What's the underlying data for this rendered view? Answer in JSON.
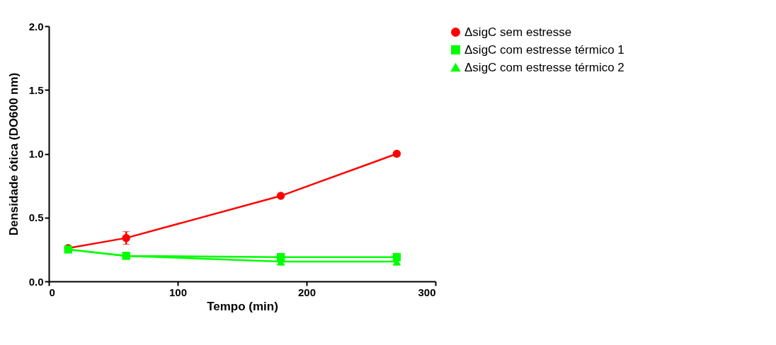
{
  "chart_data": {
    "type": "line",
    "xlabel": "Tempo (min)",
    "ylabel": "Densidade ótica (DO600 nm)",
    "x": [
      15,
      60,
      180,
      270
    ],
    "series": [
      {
        "name": "ΔsigC sem estresse",
        "color": "#ff0000",
        "marker": "circle",
        "values": [
          0.26,
          0.34,
          0.67,
          1.0
        ],
        "errors": [
          null,
          0.05,
          null,
          null
        ]
      },
      {
        "name": "ΔsigC com estresse térmico 1",
        "color": "#00ff00",
        "marker": "square",
        "values": [
          0.25,
          0.2,
          0.19,
          0.19
        ],
        "errors": [
          null,
          null,
          0.03,
          0.03
        ]
      },
      {
        "name": "ΔsigC com estresse térmico 2",
        "color": "#00ff00",
        "marker": "triangle",
        "values": [
          0.25,
          0.2,
          0.155,
          0.155
        ],
        "errors": [
          null,
          null,
          0.03,
          0.03
        ]
      }
    ],
    "xlim": [
      0,
      300
    ],
    "xticks": [
      0,
      100,
      200,
      300
    ],
    "ylim": [
      0,
      2
    ],
    "yticks": [
      {
        "value": 0,
        "label": "0.0"
      },
      {
        "value": 0.5,
        "label": "0.5"
      },
      {
        "value": 1,
        "label": "1.0"
      },
      {
        "value": 1.5,
        "label": "1.5"
      },
      {
        "value": 2,
        "label": "2.0"
      }
    ],
    "grid": false,
    "legend": "top right",
    "line_style": "solid"
  }
}
